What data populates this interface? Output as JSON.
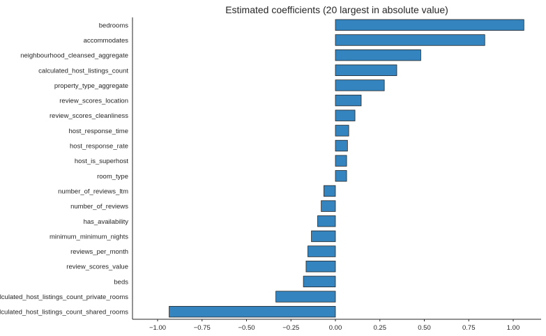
{
  "chart_data": {
    "type": "bar",
    "orientation": "horizontal",
    "title": "Estimated coefficients (20 largest in absolute value)",
    "xlabel": "",
    "ylabel": "",
    "xlim": [
      -1.0,
      1.15
    ],
    "xticks": [
      -1.0,
      -0.75,
      -0.5,
      -0.25,
      0.0,
      0.25,
      0.5,
      0.75,
      1.0
    ],
    "xtick_labels": [
      "−1.00",
      "−0.75",
      "−0.50",
      "−0.25",
      "0.00",
      "0.25",
      "0.50",
      "0.75",
      "1.00"
    ],
    "grid": false,
    "bar_color": "#3384bf",
    "edge_color": "#262626",
    "categories": [
      "bedrooms",
      "accommodates",
      "neighbourhood_cleansed_aggregate",
      "calculated_host_listings_count",
      "property_type_aggregate",
      "review_scores_location",
      "review_scores_cleanliness",
      "host_response_time",
      "host_response_rate",
      "host_is_superhost",
      "room_type",
      "number_of_reviews_ltm",
      "number_of_reviews",
      "has_availability",
      "minimum_minimum_nights",
      "reviews_per_month",
      "review_scores_value",
      "beds",
      "calculated_host_listings_count_private_rooms",
      "calculated_host_listings_count_shared_rooms"
    ],
    "values": [
      1.06,
      0.84,
      0.48,
      0.345,
      0.275,
      0.145,
      0.11,
      0.075,
      0.068,
      0.063,
      0.063,
      -0.065,
      -0.08,
      -0.1,
      -0.135,
      -0.155,
      -0.165,
      -0.18,
      -0.335,
      -0.935
    ]
  }
}
